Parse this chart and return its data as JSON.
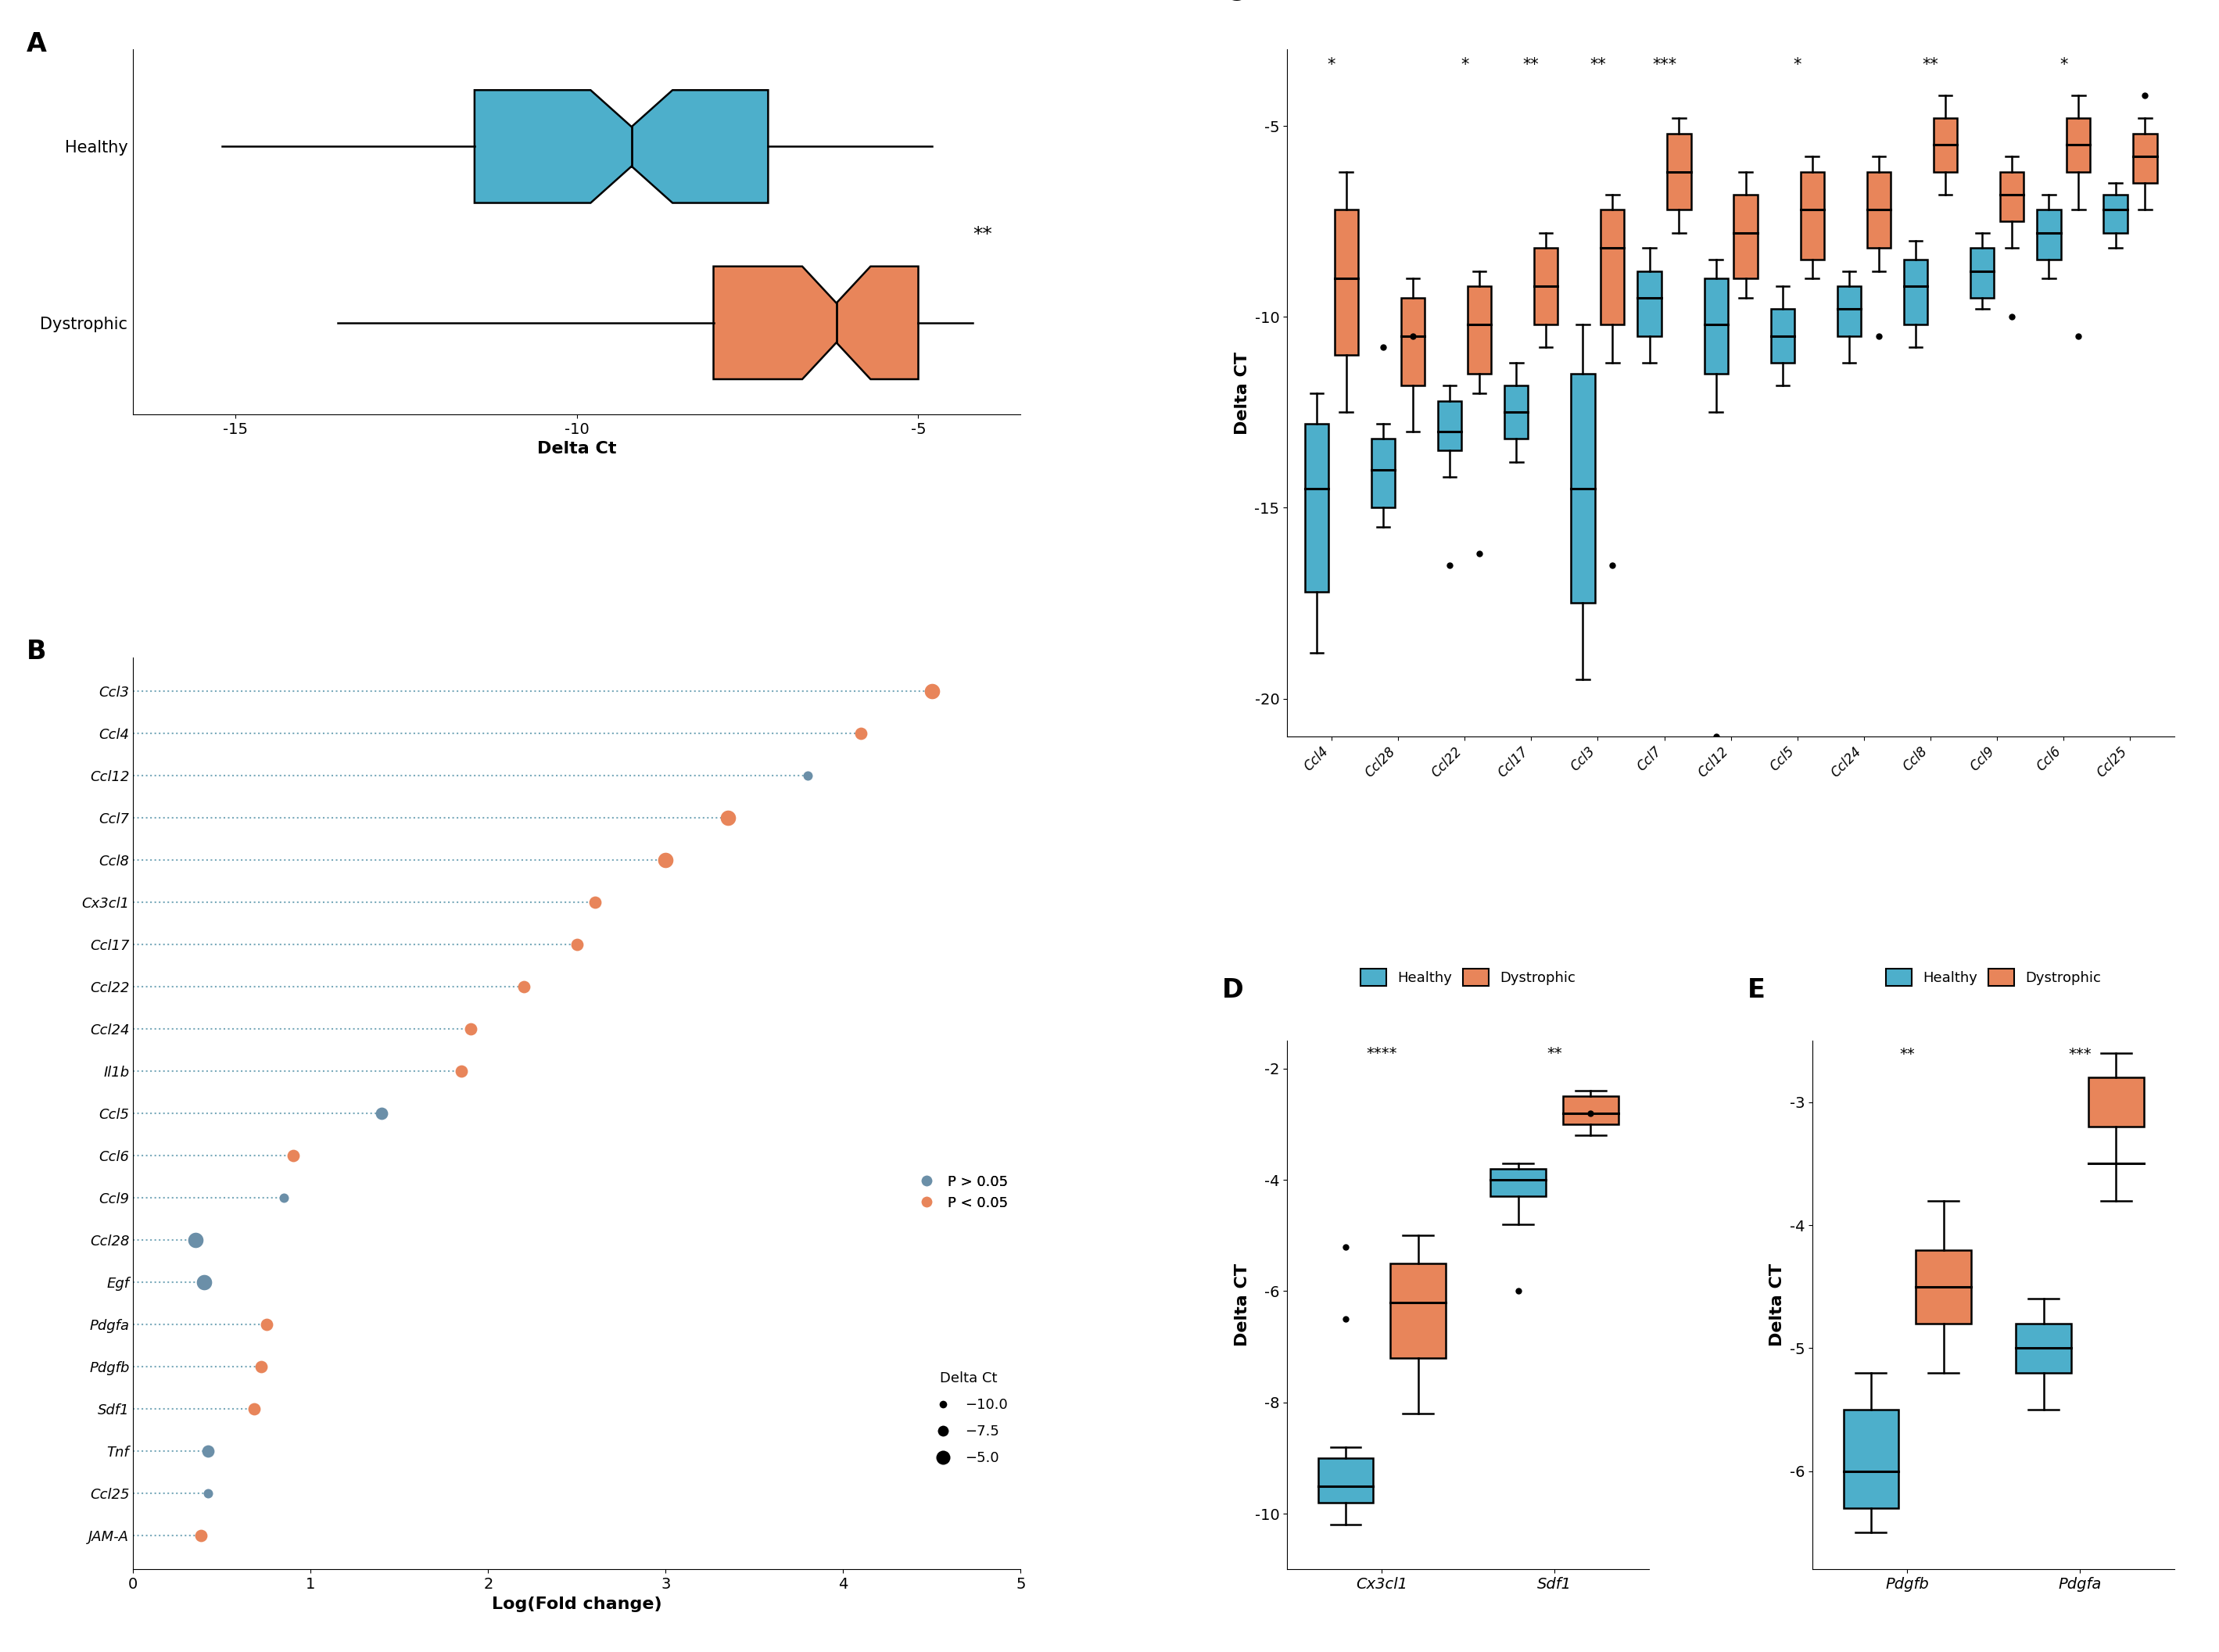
{
  "colors": {
    "healthy": "#4DAFCB",
    "dystrophic": "#E8855A",
    "dot_sig": "#E8855A",
    "dot_nonsig": "#6B8FA8",
    "dotted_line": "#7AAABB"
  },
  "panel_A": {
    "healthy": {
      "whisker_lo": -15.2,
      "q1": -11.5,
      "median": -9.2,
      "q3": -7.2,
      "whisker_hi": -4.8,
      "notch_lo": -9.8,
      "notch_hi": -8.6
    },
    "dystrophic": {
      "whisker_lo": -13.5,
      "q1": -8.0,
      "median": -6.2,
      "q3": -5.0,
      "whisker_hi": -4.2,
      "notch_lo": -6.7,
      "notch_hi": -5.7
    },
    "significance": "**",
    "xlabel": "Delta Ct",
    "xlim": [
      -16.5,
      -3.5
    ],
    "xticks": [
      -15,
      -10,
      -5
    ]
  },
  "panel_B": {
    "genes": [
      "Ccl3",
      "Ccl4",
      "Ccl12",
      "Ccl7",
      "Ccl8",
      "Cx3cl1",
      "Ccl17",
      "Ccl22",
      "Ccl24",
      "Il1b",
      "Ccl5",
      "Ccl6",
      "Ccl9",
      "Ccl28",
      "Egf",
      "Pdgfa",
      "Pdgfb",
      "Sdf1",
      "Tnf",
      "Ccl25",
      "JAM-A"
    ],
    "log_fc": [
      4.5,
      4.1,
      3.8,
      3.35,
      3.0,
      2.6,
      2.5,
      2.2,
      1.9,
      1.85,
      1.4,
      0.9,
      0.85,
      0.35,
      0.4,
      0.75,
      0.72,
      0.68,
      0.42,
      0.42,
      0.38
    ],
    "delta_ct": [
      -5.0,
      -7.5,
      -10.0,
      -5.0,
      -5.0,
      -7.5,
      -7.5,
      -7.5,
      -7.5,
      -7.5,
      -7.5,
      -7.5,
      -10.0,
      -5.0,
      -5.0,
      -7.5,
      -7.5,
      -7.5,
      -7.5,
      -10.0,
      -7.5
    ],
    "significant": [
      true,
      true,
      false,
      true,
      true,
      true,
      true,
      true,
      true,
      true,
      false,
      true,
      false,
      false,
      false,
      true,
      true,
      true,
      false,
      false,
      true
    ],
    "xlabel": "Log(Fold change)",
    "xlim": [
      0,
      5
    ],
    "xticks": [
      0,
      1,
      2,
      3,
      4,
      5
    ]
  },
  "panel_C": {
    "genes": [
      "Ccl4",
      "Ccl28",
      "Ccl22",
      "Ccl17",
      "Ccl3",
      "Ccl7",
      "Ccl12",
      "Ccl5",
      "Ccl24",
      "Ccl8",
      "Ccl9",
      "Ccl6",
      "Ccl25"
    ],
    "significance": [
      "*",
      "",
      "*",
      "**",
      "**",
      "***",
      "",
      "*",
      "",
      "**",
      "",
      "*",
      ""
    ],
    "ylabel": "Delta CT",
    "ylim": [
      -21,
      -3
    ],
    "yticks": [
      -20,
      -15,
      -10,
      -5
    ],
    "healthy_boxes": [
      {
        "q1": -17.2,
        "median": -14.5,
        "q3": -12.8,
        "whisker_lo": -18.8,
        "whisker_hi": -12.0,
        "outliers": []
      },
      {
        "q1": -15.0,
        "median": -14.0,
        "q3": -13.2,
        "whisker_lo": -15.5,
        "whisker_hi": -12.8,
        "outliers": [
          -10.8
        ]
      },
      {
        "q1": -13.5,
        "median": -13.0,
        "q3": -12.2,
        "whisker_lo": -14.2,
        "whisker_hi": -11.8,
        "outliers": [
          -16.5
        ]
      },
      {
        "q1": -13.2,
        "median": -12.5,
        "q3": -11.8,
        "whisker_lo": -13.8,
        "whisker_hi": -11.2,
        "outliers": []
      },
      {
        "q1": -17.5,
        "median": -14.5,
        "q3": -11.5,
        "whisker_lo": -19.5,
        "whisker_hi": -10.2,
        "outliers": []
      },
      {
        "q1": -10.5,
        "median": -9.5,
        "q3": -8.8,
        "whisker_lo": -11.2,
        "whisker_hi": -8.2,
        "outliers": []
      },
      {
        "q1": -11.5,
        "median": -10.2,
        "q3": -9.0,
        "whisker_lo": -12.5,
        "whisker_hi": -8.5,
        "outliers": [
          -21.0
        ]
      },
      {
        "q1": -11.2,
        "median": -10.5,
        "q3": -9.8,
        "whisker_lo": -11.8,
        "whisker_hi": -9.2,
        "outliers": []
      },
      {
        "q1": -10.5,
        "median": -9.8,
        "q3": -9.2,
        "whisker_lo": -11.2,
        "whisker_hi": -8.8,
        "outliers": []
      },
      {
        "q1": -10.2,
        "median": -9.2,
        "q3": -8.5,
        "whisker_lo": -10.8,
        "whisker_hi": -8.0,
        "outliers": []
      },
      {
        "q1": -9.5,
        "median": -8.8,
        "q3": -8.2,
        "whisker_lo": -9.8,
        "whisker_hi": -7.8,
        "outliers": []
      },
      {
        "q1": -8.5,
        "median": -7.8,
        "q3": -7.2,
        "whisker_lo": -9.0,
        "whisker_hi": -6.8,
        "outliers": []
      },
      {
        "q1": -7.8,
        "median": -7.2,
        "q3": -6.8,
        "whisker_lo": -8.2,
        "whisker_hi": -6.5,
        "outliers": []
      }
    ],
    "dystrophic_boxes": [
      {
        "q1": -11.0,
        "median": -9.0,
        "q3": -7.2,
        "whisker_lo": -12.5,
        "whisker_hi": -6.2,
        "outliers": []
      },
      {
        "q1": -11.8,
        "median": -10.5,
        "q3": -9.5,
        "whisker_lo": -13.0,
        "whisker_hi": -9.0,
        "outliers": [
          -10.5
        ]
      },
      {
        "q1": -11.5,
        "median": -10.2,
        "q3": -9.2,
        "whisker_lo": -12.0,
        "whisker_hi": -8.8,
        "outliers": [
          -16.2
        ]
      },
      {
        "q1": -10.2,
        "median": -9.2,
        "q3": -8.2,
        "whisker_lo": -10.8,
        "whisker_hi": -7.8,
        "outliers": []
      },
      {
        "q1": -10.2,
        "median": -8.2,
        "q3": -7.2,
        "whisker_lo": -11.2,
        "whisker_hi": -6.8,
        "outliers": [
          -16.5
        ]
      },
      {
        "q1": -7.2,
        "median": -6.2,
        "q3": -5.2,
        "whisker_lo": -7.8,
        "whisker_hi": -4.8,
        "outliers": []
      },
      {
        "q1": -9.0,
        "median": -7.8,
        "q3": -6.8,
        "whisker_lo": -9.5,
        "whisker_hi": -6.2,
        "outliers": []
      },
      {
        "q1": -8.5,
        "median": -7.2,
        "q3": -6.2,
        "whisker_lo": -9.0,
        "whisker_hi": -5.8,
        "outliers": []
      },
      {
        "q1": -8.2,
        "median": -7.2,
        "q3": -6.2,
        "whisker_lo": -8.8,
        "whisker_hi": -5.8,
        "outliers": [
          -10.5
        ]
      },
      {
        "q1": -6.2,
        "median": -5.5,
        "q3": -4.8,
        "whisker_lo": -6.8,
        "whisker_hi": -4.2,
        "outliers": []
      },
      {
        "q1": -7.5,
        "median": -6.8,
        "q3": -6.2,
        "whisker_lo": -8.2,
        "whisker_hi": -5.8,
        "outliers": [
          -10.0
        ]
      },
      {
        "q1": -6.2,
        "median": -5.5,
        "q3": -4.8,
        "whisker_lo": -7.2,
        "whisker_hi": -4.2,
        "outliers": [
          -10.5
        ]
      },
      {
        "q1": -6.5,
        "median": -5.8,
        "q3": -5.2,
        "whisker_lo": -7.2,
        "whisker_hi": -4.8,
        "outliers": [
          -4.2
        ]
      }
    ]
  },
  "panel_D": {
    "genes": [
      "Cx3cl1",
      "Sdf1"
    ],
    "significance": [
      "****",
      "**"
    ],
    "ylabel": "Delta CT",
    "ylim": [
      -11.0,
      -1.5
    ],
    "yticks": [
      -10,
      -8,
      -6,
      -4,
      -2
    ],
    "healthy_boxes": [
      {
        "q1": -9.8,
        "median": -9.5,
        "q3": -9.0,
        "whisker_lo": -10.2,
        "whisker_hi": -8.8,
        "outliers": [
          -5.2,
          -6.5
        ]
      },
      {
        "q1": -4.3,
        "median": -4.0,
        "q3": -3.8,
        "whisker_lo": -4.8,
        "whisker_hi": -3.7,
        "outliers": [
          -6.0
        ]
      }
    ],
    "dystrophic_boxes": [
      {
        "q1": -7.2,
        "median": -6.2,
        "q3": -5.5,
        "whisker_lo": -8.2,
        "whisker_hi": -5.0,
        "outliers": []
      },
      {
        "q1": -3.0,
        "median": -2.8,
        "q3": -2.5,
        "whisker_lo": -3.2,
        "whisker_hi": -2.4,
        "outliers": [
          -2.8
        ]
      }
    ]
  },
  "panel_E": {
    "genes": [
      "Pdgfb",
      "Pdgfa"
    ],
    "significance": [
      "**",
      "***"
    ],
    "ylabel": "Delta CT",
    "ylim": [
      -6.8,
      -2.5
    ],
    "yticks": [
      -6,
      -5,
      -4,
      -3
    ],
    "healthy_boxes": [
      {
        "q1": -6.3,
        "median": -6.0,
        "q3": -5.5,
        "whisker_lo": -6.5,
        "whisker_hi": -5.2,
        "outliers": []
      },
      {
        "q1": -5.2,
        "median": -5.0,
        "q3": -4.8,
        "whisker_lo": -5.5,
        "whisker_hi": -4.6,
        "outliers": []
      }
    ],
    "dystrophic_boxes": [
      {
        "q1": -4.8,
        "median": -4.5,
        "q3": -4.2,
        "whisker_lo": -5.2,
        "whisker_hi": -3.8,
        "outliers": []
      },
      {
        "q1": -3.2,
        "median": -3.5,
        "q3": -2.8,
        "whisker_lo": -3.8,
        "whisker_hi": -2.6,
        "outliers": []
      }
    ]
  }
}
